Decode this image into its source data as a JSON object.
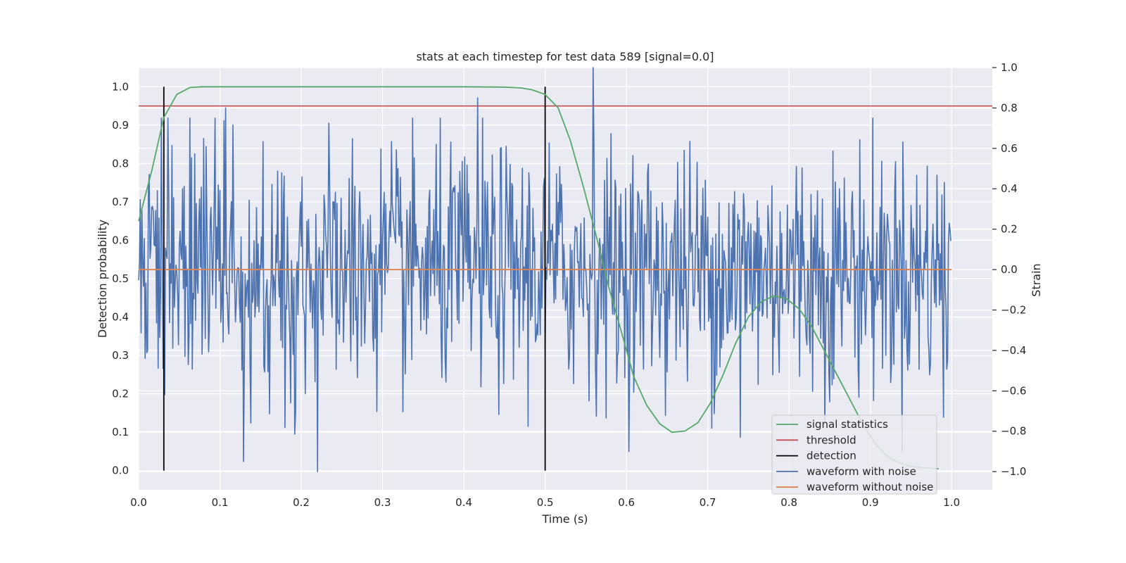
{
  "chart_data": {
    "type": "line",
    "title": "stats at each timestep for test data 589 [signal=0.0]",
    "xlabel": "Time (s)",
    "ylabel": "Detection probability",
    "y2label": "Strain",
    "xlim": [
      0.0,
      1.05
    ],
    "ylim": [
      -0.05,
      1.05
    ],
    "y2lim": [
      -1.09,
      1.0
    ],
    "grid": true,
    "legend_position": "lower-right",
    "x_ticks": [
      0.0,
      0.1,
      0.2,
      0.3,
      0.4,
      0.5,
      0.6,
      0.7,
      0.8,
      0.9,
      1.0
    ],
    "x_tick_labels": [
      "0.0",
      "0.1",
      "0.2",
      "0.3",
      "0.4",
      "0.5",
      "0.6",
      "0.7",
      "0.8",
      "0.9",
      "1.0"
    ],
    "y_ticks": [
      0.0,
      0.1,
      0.2,
      0.3,
      0.4,
      0.5,
      0.6,
      0.7,
      0.8,
      0.9,
      1.0
    ],
    "y_tick_labels": [
      "0.0",
      "0.1",
      "0.2",
      "0.3",
      "0.4",
      "0.5",
      "0.6",
      "0.7",
      "0.8",
      "0.9",
      "1.0"
    ],
    "y2_ticks": [
      -1.0,
      -0.8,
      -0.6,
      -0.4,
      -0.2,
      0.0,
      0.2,
      0.4,
      0.6,
      0.8,
      1.0
    ],
    "y2_tick_labels": [
      "−1.0",
      "−0.8",
      "−0.6",
      "−0.4",
      "−0.2",
      "0.0",
      "0.2",
      "0.4",
      "0.6",
      "0.8",
      "1.0"
    ],
    "series": [
      {
        "name": "signal statistics",
        "axis": "left",
        "color": "#55a868",
        "x": [
          0.0,
          0.016,
          0.031,
          0.047,
          0.063,
          0.078,
          0.094,
          0.2,
          0.3,
          0.4,
          0.45,
          0.47,
          0.484,
          0.5,
          0.516,
          0.531,
          0.547,
          0.563,
          0.578,
          0.594,
          0.609,
          0.625,
          0.641,
          0.656,
          0.672,
          0.688,
          0.703,
          0.719,
          0.734,
          0.75,
          0.766,
          0.781,
          0.797,
          0.813,
          0.828,
          0.844,
          0.859,
          0.875,
          0.891,
          0.906,
          0.922,
          0.938,
          0.953,
          0.969,
          0.984
        ],
        "y": [
          0.65,
          0.78,
          0.92,
          0.98,
          0.998,
          1.0,
          1.0,
          1.0,
          1.0,
          1.0,
          0.999,
          0.997,
          0.992,
          0.98,
          0.945,
          0.86,
          0.74,
          0.61,
          0.48,
          0.36,
          0.245,
          0.17,
          0.122,
          0.1,
          0.103,
          0.125,
          0.175,
          0.25,
          0.33,
          0.4,
          0.44,
          0.455,
          0.448,
          0.42,
          0.375,
          0.31,
          0.25,
          0.185,
          0.12,
          0.07,
          0.035,
          0.018,
          0.01,
          0.007,
          0.005
        ]
      },
      {
        "name": "threshold",
        "axis": "left",
        "color": "#c44e52",
        "x": [
          0.0,
          1.05
        ],
        "y": [
          0.95,
          0.95
        ]
      },
      {
        "name": "detection",
        "axis": "left",
        "color": "#000000",
        "x": [
          0.031,
          0.5
        ],
        "y": [
          1.0,
          1.0
        ]
      },
      {
        "name": "waveform with noise",
        "axis": "right",
        "color": "#4c72b0",
        "sample_count": 1000,
        "x_range": [
          0.0,
          0.999
        ],
        "approx_mean": 0.0,
        "approx_std": 0.3,
        "extremes": [
          {
            "x": 0.107,
            "y": 0.8
          },
          {
            "x": 0.129,
            "y": -0.95
          },
          {
            "x": 0.22,
            "y": -1.0
          },
          {
            "x": 0.417,
            "y": 0.85
          },
          {
            "x": 0.559,
            "y": 1.0
          },
          {
            "x": 0.74,
            "y": -0.83
          },
          {
            "x": 0.99,
            "y": -0.73
          }
        ]
      },
      {
        "name": "waveform without noise",
        "axis": "right",
        "color": "#dd8452",
        "x": [
          0.0,
          1.0
        ],
        "y": [
          0.0,
          0.0
        ]
      }
    ]
  }
}
